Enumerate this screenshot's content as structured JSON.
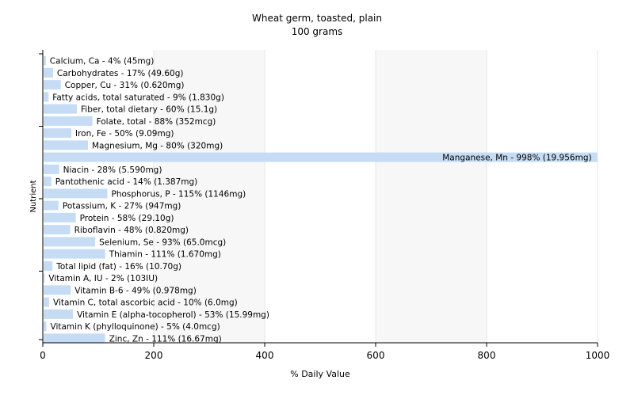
{
  "chart_data": {
    "type": "bar",
    "orientation": "horizontal",
    "title": "Wheat germ, toasted, plain",
    "subtitle": "100 grams",
    "xlabel": "% Daily Value",
    "ylabel": "Nutrient",
    "xlim": [
      0,
      1000
    ],
    "xticks": [
      "0",
      "200",
      "400",
      "600",
      "800",
      "1000"
    ],
    "grid": true,
    "legend": "none",
    "colors": {
      "bar": "#c6dcf5",
      "grid": "#e6e6e6",
      "axis": "#000000",
      "text": "#000000",
      "band": "#f7f7f7"
    },
    "categories": [
      "Calcium, Ca",
      "Carbohydrates",
      "Copper, Cu",
      "Fatty acids, total saturated",
      "Fiber, total dietary",
      "Folate, total",
      "Iron, Fe",
      "Magnesium, Mg",
      "Manganese, Mn",
      "Niacin",
      "Pantothenic acid",
      "Phosphorus, P",
      "Potassium, K",
      "Protein",
      "Riboflavin",
      "Selenium, Se",
      "Thiamin",
      "Total lipid (fat)",
      "Vitamin A, IU",
      "Vitamin B-6",
      "Vitamin C, total ascorbic acid",
      "Vitamin E (alpha-tocopherol)",
      "Vitamin K (phylloquinone)",
      "Zinc, Zn"
    ],
    "values": [
      4,
      17,
      31,
      9,
      60,
      88,
      50,
      80,
      998,
      28,
      14,
      115,
      27,
      58,
      48,
      93,
      111,
      16,
      2,
      49,
      10,
      53,
      5,
      111
    ],
    "labels": [
      "Calcium, Ca - 4% (45mg)",
      "Carbohydrates - 17% (49.60g)",
      "Copper, Cu - 31% (0.620mg)",
      "Fatty acids, total saturated - 9% (1.830g)",
      "Fiber, total dietary - 60% (15.1g)",
      "Folate, total - 88% (352mcg)",
      "Iron, Fe - 50% (9.09mg)",
      "Magnesium, Mg - 80% (320mg)",
      "Manganese, Mn - 998% (19.956mg)",
      "Niacin - 28% (5.590mg)",
      "Pantothenic acid - 14% (1.387mg)",
      "Phosphorus, P - 115% (1146mg)",
      "Potassium, K - 27% (947mg)",
      "Protein - 58% (29.10g)",
      "Riboflavin - 48% (0.820mg)",
      "Selenium, Se - 93% (65.0mcg)",
      "Thiamin - 111% (1.670mg)",
      "Total lipid (fat) - 16% (10.70g)",
      "Vitamin A, IU - 2% (103IU)",
      "Vitamin B-6 - 49% (0.978mg)",
      "Vitamin C, total ascorbic acid - 10% (6.0mg)",
      "Vitamin E (alpha-tocopherol) - 53% (15.99mg)",
      "Vitamin K (phylloquinone) - 5% (4.0mcg)",
      "Zinc, Zn - 111% (16.67mg)"
    ]
  }
}
